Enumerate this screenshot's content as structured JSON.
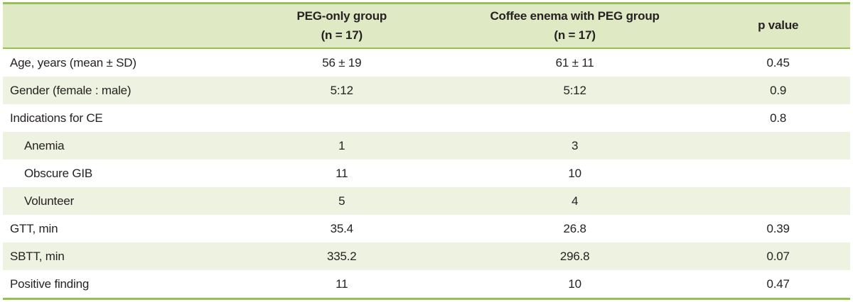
{
  "table": {
    "colors": {
      "header_bg": "#dfe9c3",
      "stripe_bg": "#eef2e1",
      "border_green": "#97c153",
      "text": "#262223"
    },
    "columns": {
      "label": "",
      "group1_line1": "PEG-only group",
      "group1_line2": "(n = 17)",
      "group2_line1": "Coffee enema with PEG group",
      "group2_line2": "(n = 17)",
      "p": "p value"
    },
    "rows": [
      {
        "label": "Age, years (mean ± SD)",
        "peg_only": "56 ± 19",
        "coffee_enema": "61 ± 11",
        "p_value": "0.45"
      },
      {
        "label": "Gender (female : male)",
        "peg_only": "5:12",
        "coffee_enema": "5:12",
        "p_value": "0.9"
      },
      {
        "label": "Indications for CE",
        "peg_only": "",
        "coffee_enema": "",
        "p_value": "0.8"
      },
      {
        "label": "Anemia",
        "peg_only": "1",
        "coffee_enema": "3",
        "p_value": ""
      },
      {
        "label": "Obscure GIB",
        "peg_only": "11",
        "coffee_enema": "10",
        "p_value": ""
      },
      {
        "label": "Volunteer",
        "peg_only": "5",
        "coffee_enema": "4",
        "p_value": ""
      },
      {
        "label": "GTT, min",
        "peg_only": "35.4",
        "coffee_enema": "26.8",
        "p_value": "0.39"
      },
      {
        "label": "SBTT, min",
        "peg_only": "335.2",
        "coffee_enema": "296.8",
        "p_value": "0.07"
      },
      {
        "label": "Positive finding",
        "peg_only": "11",
        "coffee_enema": "10",
        "p_value": "0.47"
      }
    ]
  }
}
